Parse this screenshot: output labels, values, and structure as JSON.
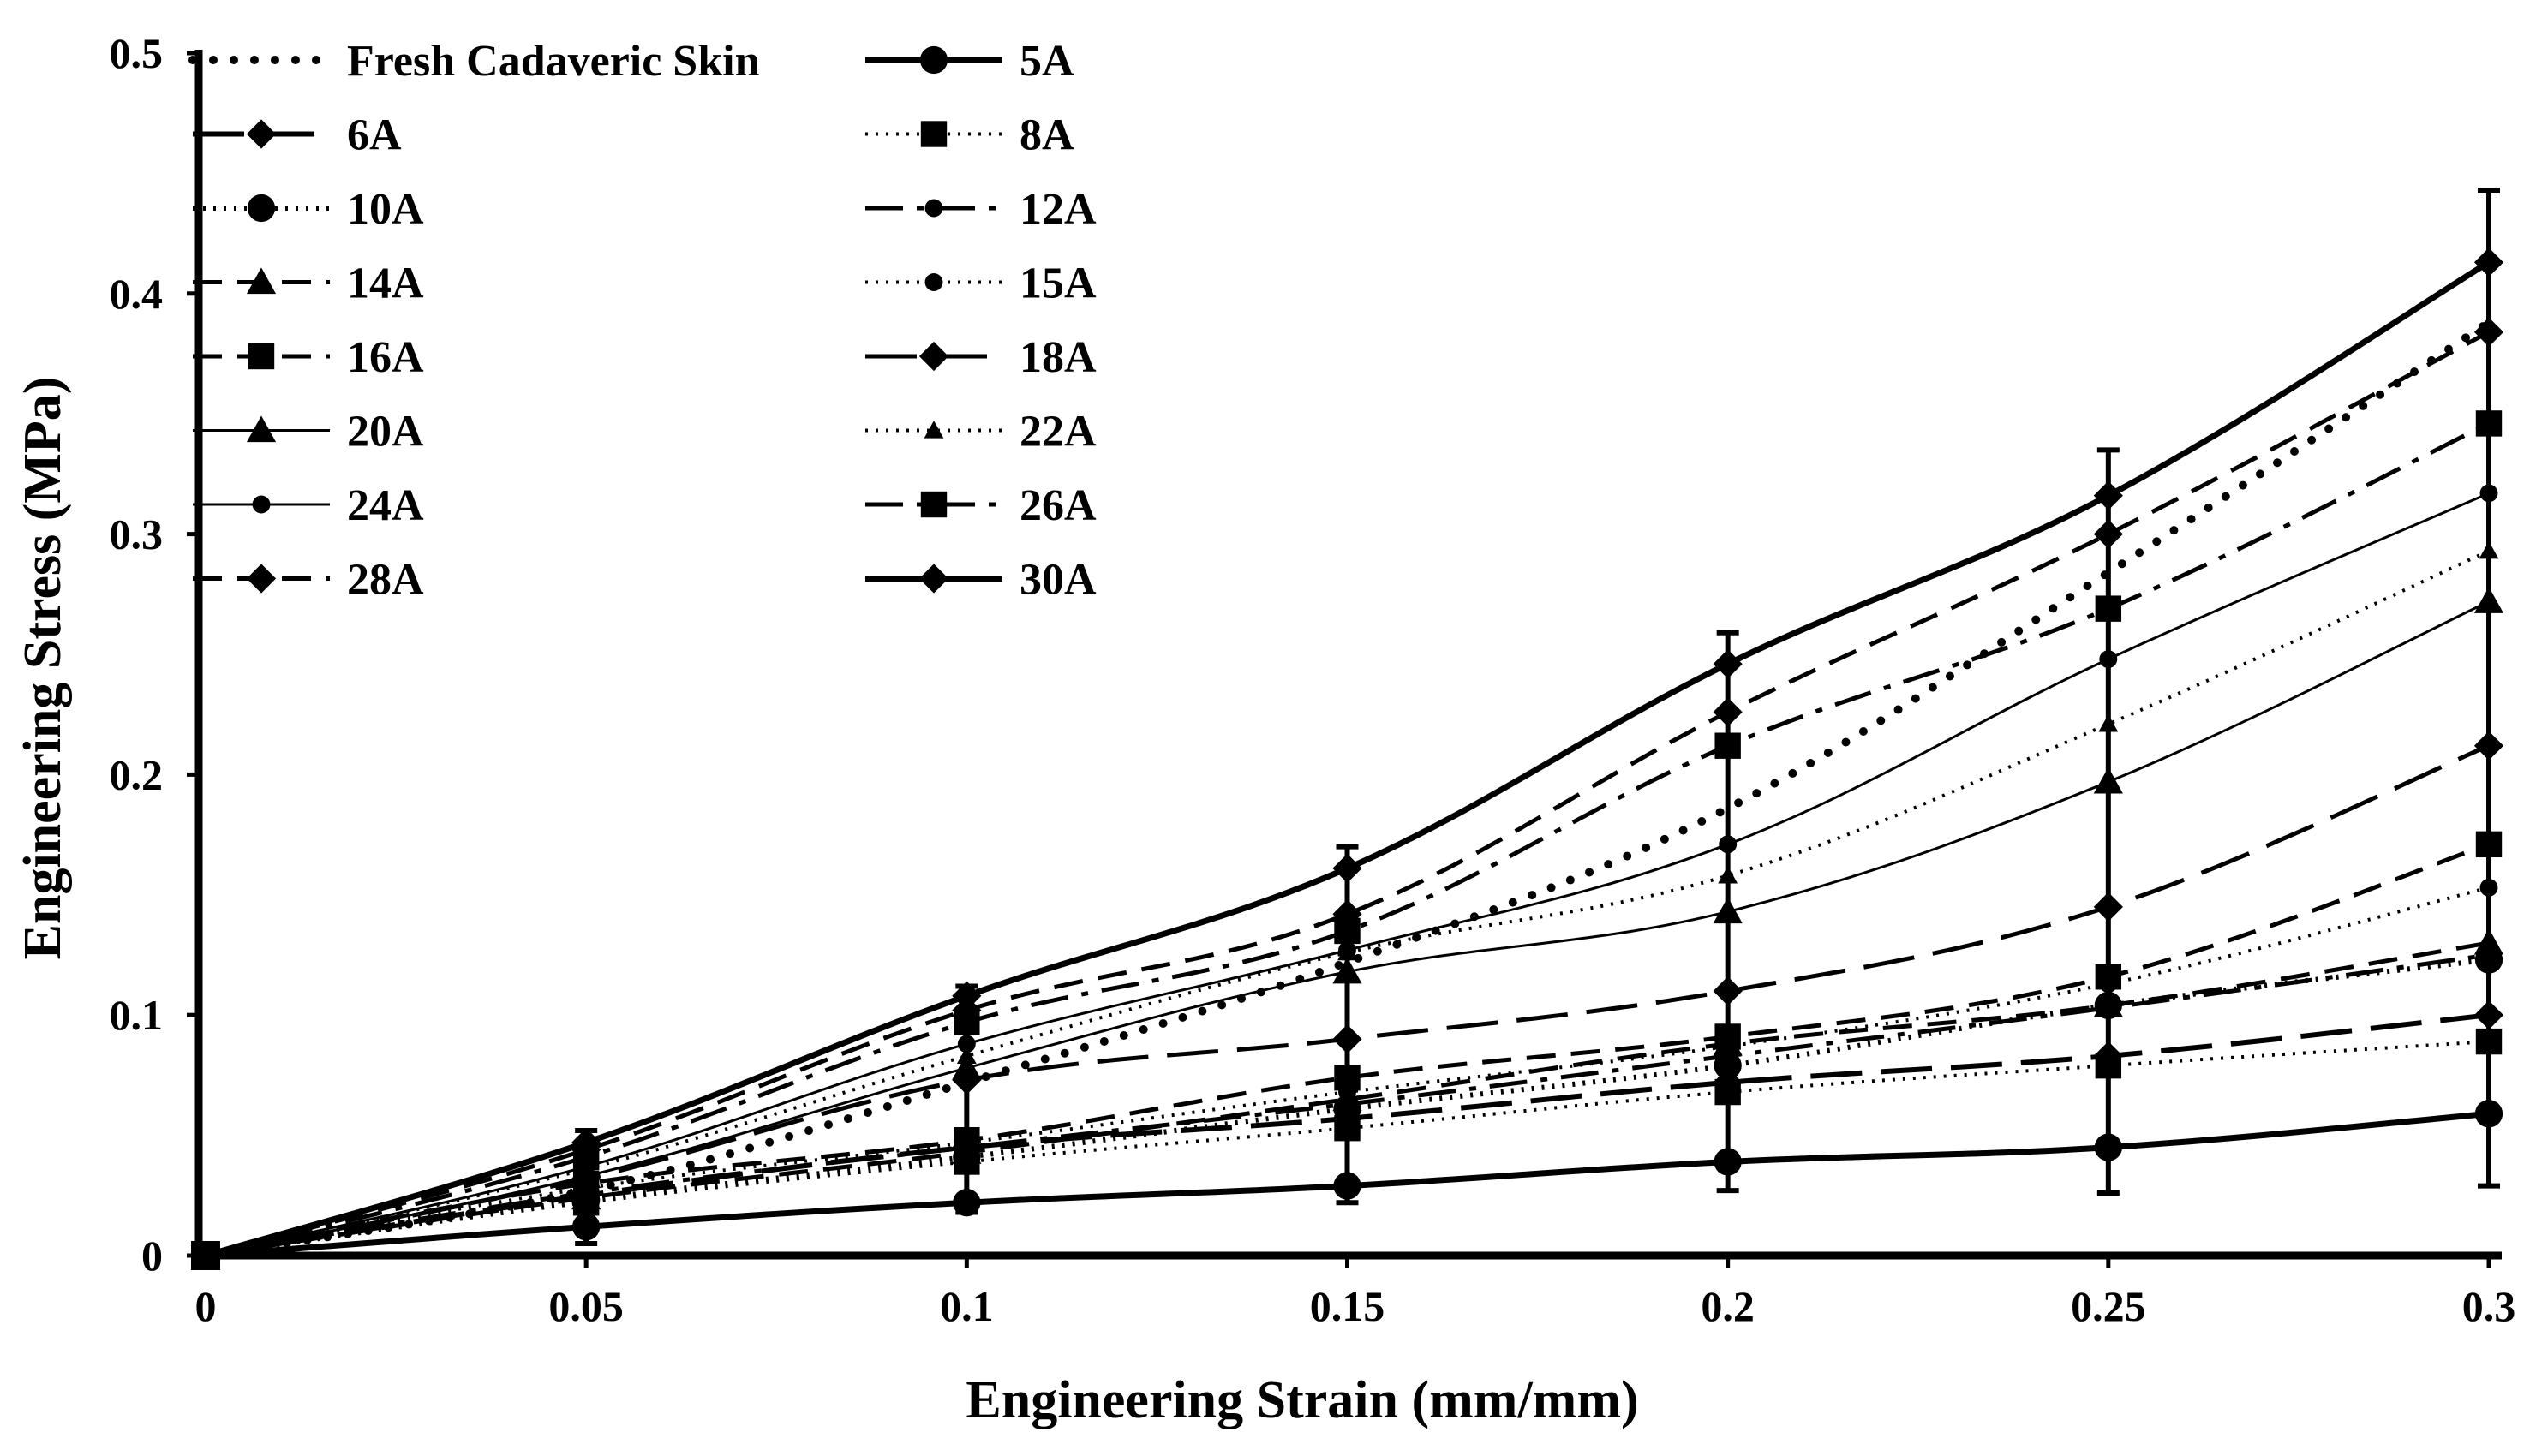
{
  "chart_data": {
    "type": "line",
    "title": "",
    "xlabel": "Engineering Strain (mm/mm)",
    "ylabel": "Engineering Stress (MPa)",
    "xlim": [
      0,
      0.3
    ],
    "ylim": [
      0,
      0.5
    ],
    "x": [
      0,
      0.05,
      0.1,
      0.15,
      0.2,
      0.25,
      0.3
    ],
    "x_ticks": [
      "0",
      "0.05",
      "0.1",
      "0.15",
      "0.2",
      "0.25",
      "0.3"
    ],
    "y_ticks": [
      "0",
      "0.1",
      "0.2",
      "0.3",
      "0.4",
      "0.5"
    ],
    "grid": false,
    "legend_position": "top-left",
    "series": [
      {
        "name": "Fresh Cadaveric Skin",
        "values": [
          0,
          0.027,
          0.072,
          0.122,
          0.186,
          0.284,
          0.388
        ],
        "dash": "dots",
        "marker": "none",
        "width": 10
      },
      {
        "name": "5A",
        "values": [
          0,
          0.012,
          0.022,
          0.029,
          0.039,
          0.045,
          0.059
        ],
        "dash": "solid",
        "marker": "circle",
        "width": 7
      },
      {
        "name": "6A",
        "values": [
          0,
          0.025,
          0.045,
          0.057,
          0.072,
          0.083,
          0.1
        ],
        "dash": "longdash",
        "marker": "diamond",
        "width": 6
      },
      {
        "name": "8A",
        "values": [
          0,
          0.022,
          0.039,
          0.053,
          0.068,
          0.079,
          0.089
        ],
        "dash": "dotted",
        "marker": "square",
        "width": 4
      },
      {
        "name": "10A",
        "values": [
          0,
          0.023,
          0.041,
          0.061,
          0.079,
          0.104,
          0.123
        ],
        "dash": "dotted",
        "marker": "circle",
        "width": 6
      },
      {
        "name": "12A",
        "values": [
          0,
          0.026,
          0.045,
          0.063,
          0.083,
          0.103,
          0.125
        ],
        "dash": "dashdot",
        "marker": "circle-small",
        "width": 5
      },
      {
        "name": "14A",
        "values": [
          0,
          0.024,
          0.043,
          0.065,
          0.088,
          0.104,
          0.13
        ],
        "dash": "dash",
        "marker": "triangle",
        "width": 5
      },
      {
        "name": "15A",
        "values": [
          0,
          0.028,
          0.047,
          0.068,
          0.087,
          0.113,
          0.153
        ],
        "dash": "dotted",
        "marker": "circle-small",
        "width": 4
      },
      {
        "name": "16A",
        "values": [
          0,
          0.03,
          0.048,
          0.074,
          0.091,
          0.116,
          0.171
        ],
        "dash": "dash",
        "marker": "square",
        "width": 5
      },
      {
        "name": "18A",
        "values": [
          0,
          0.032,
          0.073,
          0.09,
          0.11,
          0.145,
          0.212
        ],
        "dash": "longdash",
        "marker": "diamond",
        "width": 5
      },
      {
        "name": "20A",
        "values": [
          0,
          0.033,
          0.078,
          0.118,
          0.143,
          0.197,
          0.272
        ],
        "dash": "solid",
        "marker": "triangle",
        "width": 3
      },
      {
        "name": "22A",
        "values": [
          0,
          0.036,
          0.083,
          0.126,
          0.158,
          0.221,
          0.293
        ],
        "dash": "dotted",
        "marker": "triangle-small",
        "width": 4
      },
      {
        "name": "24A",
        "values": [
          0,
          0.037,
          0.088,
          0.127,
          0.171,
          0.248,
          0.317
        ],
        "dash": "solid",
        "marker": "circle-small",
        "width": 3
      },
      {
        "name": "26A",
        "values": [
          0,
          0.041,
          0.097,
          0.135,
          0.212,
          0.269,
          0.346
        ],
        "dash": "dashdot",
        "marker": "square",
        "width": 5
      },
      {
        "name": "28A",
        "values": [
          0,
          0.044,
          0.102,
          0.142,
          0.226,
          0.3,
          0.384
        ],
        "dash": "dash",
        "marker": "diamond",
        "width": 5
      },
      {
        "name": "30A",
        "values": [
          0,
          0.047,
          0.108,
          0.161,
          0.246,
          0.316,
          0.413
        ],
        "dash": "solid",
        "marker": "diamond",
        "width": 7
      }
    ],
    "error_bars": [
      {
        "x": 0.05,
        "low": 0.005,
        "high": 0.052
      },
      {
        "x": 0.1,
        "low": 0.018,
        "high": 0.112
      },
      {
        "x": 0.15,
        "low": 0.022,
        "high": 0.17
      },
      {
        "x": 0.2,
        "low": 0.027,
        "high": 0.259
      },
      {
        "x": 0.25,
        "low": 0.026,
        "high": 0.335
      },
      {
        "x": 0.3,
        "low": 0.029,
        "high": 0.443
      }
    ],
    "colors": {
      "series": "#000000",
      "axis": "#000000",
      "background": "#ffffff"
    }
  }
}
